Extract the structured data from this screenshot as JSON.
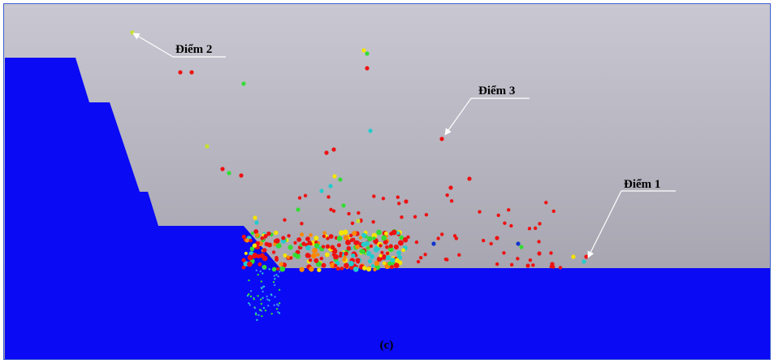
{
  "annotations": [
    {
      "label": "Điểm 2"
    },
    {
      "label": "Điểm 3"
    },
    {
      "label": "Điểm 1"
    }
  ],
  "caption": "(c)"
}
